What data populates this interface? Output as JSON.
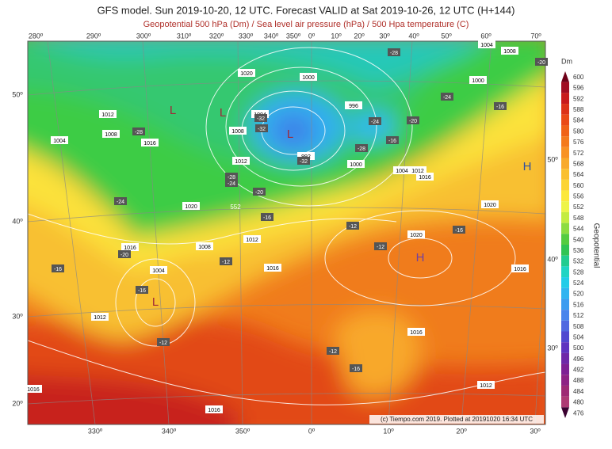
{
  "header": {
    "title": "GFS model. Sun 2019-10-20, 12 UTC. Forecast VALID at Sat 2019-10-26, 12 UTC (H+144)",
    "subtitle": "Geopotential 500 hPa (Dm) / Sea level air pressure (hPa) / 500 Hpa temperature (C)"
  },
  "axes": {
    "top_lon_labels": [
      "280º",
      "290º",
      "300º",
      "310º",
      "320º",
      "330º",
      "340º",
      "350º",
      "0º",
      "10º",
      "20º",
      "30º",
      "40º",
      "50º",
      "60º",
      "70º"
    ],
    "bottom_lon_labels": [
      "330º",
      "340º",
      "350º",
      "0º",
      "10º",
      "20º",
      "30º"
    ],
    "left_lat_labels": [
      "50º",
      "40º",
      "30º",
      "20º"
    ],
    "right_lat_labels": [
      "50º",
      "40º",
      "30º"
    ]
  },
  "colorbar": {
    "unit": "Dm",
    "title": "Geopotential",
    "levels": [
      600,
      596,
      592,
      588,
      584,
      580,
      576,
      572,
      568,
      564,
      560,
      556,
      552,
      548,
      544,
      540,
      536,
      532,
      528,
      524,
      520,
      516,
      512,
      508,
      504,
      500,
      496,
      492,
      488,
      484,
      480,
      476
    ]
  },
  "map": {
    "pressure_labels": [
      "1020",
      "1000",
      "1000",
      "1004",
      "1008",
      "996",
      "1004",
      "1012",
      "1008",
      "1004",
      "1016",
      "1008",
      "1012",
      "992",
      "1000",
      "1004",
      "1012",
      "1016",
      "1020",
      "1020",
      "1020",
      "1012",
      "1008",
      "1016",
      "1016",
      "1016",
      "1004",
      "1012",
      "1016",
      "1016",
      "1016",
      "1012"
    ],
    "temperature_labels": [
      "-28",
      "-24",
      "-16",
      "-20",
      "-24",
      "-16",
      "-28",
      "-28",
      "-32",
      "-32",
      "-32",
      "-28",
      "-24",
      "-20",
      "-24",
      "-16",
      "-12",
      "-16",
      "-12",
      "-20",
      "-16",
      "-12",
      "-16",
      "-12",
      "-12",
      "-16",
      "-20"
    ],
    "contour_labels": [
      "552"
    ],
    "centers": [
      "L",
      "L",
      "L",
      "L",
      "H",
      "H"
    ],
    "credit": "(c) Tiempo.com 2019. Plotted at 20191020 16:34 UTC"
  }
}
